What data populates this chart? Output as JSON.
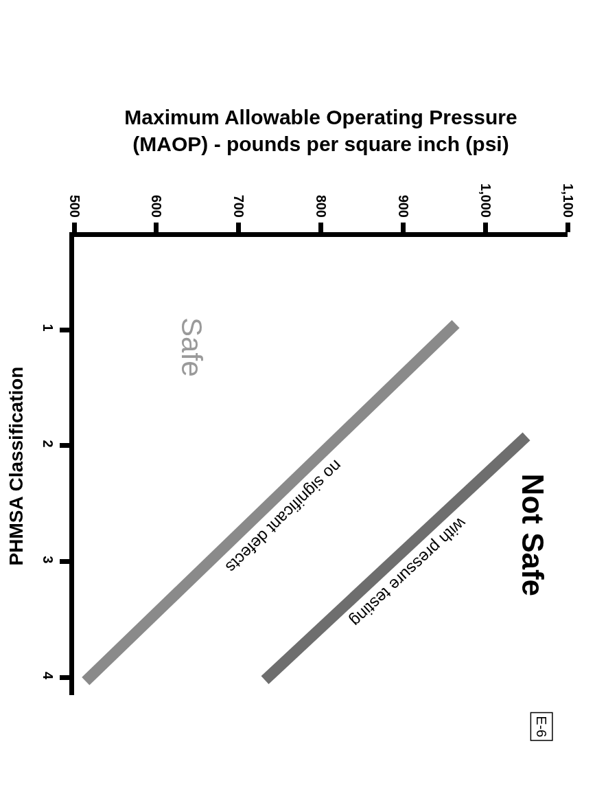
{
  "chart_data": {
    "type": "line",
    "xlabel": "Maximum Allowable Operating Pressure\n(MAOP) - pounds per square inch (psi)",
    "ylabel": "PHMSA Classification",
    "series": [
      {
        "name": "no significant defects",
        "color": "#8a8a8a",
        "x": [
          964,
          514
        ],
        "values": [
          0.95,
          4.03
        ]
      },
      {
        "name": "with pressure testing",
        "color": "#6e6e6e",
        "x": [
          1050,
          732
        ],
        "values": [
          1.92,
          4.02
        ]
      }
    ],
    "xlim": [
      500,
      1100
    ],
    "xticks": [
      500,
      600,
      700,
      800,
      900,
      {
        "value": 1000,
        "label": "1,000"
      },
      {
        "value": 1100,
        "label": "1,100"
      }
    ],
    "ylim": [
      4.15,
      0.2
    ],
    "yticks": [
      1,
      2,
      3,
      4
    ],
    "annotations": [
      "Safe",
      "Not Safe",
      "E-6"
    ]
  }
}
